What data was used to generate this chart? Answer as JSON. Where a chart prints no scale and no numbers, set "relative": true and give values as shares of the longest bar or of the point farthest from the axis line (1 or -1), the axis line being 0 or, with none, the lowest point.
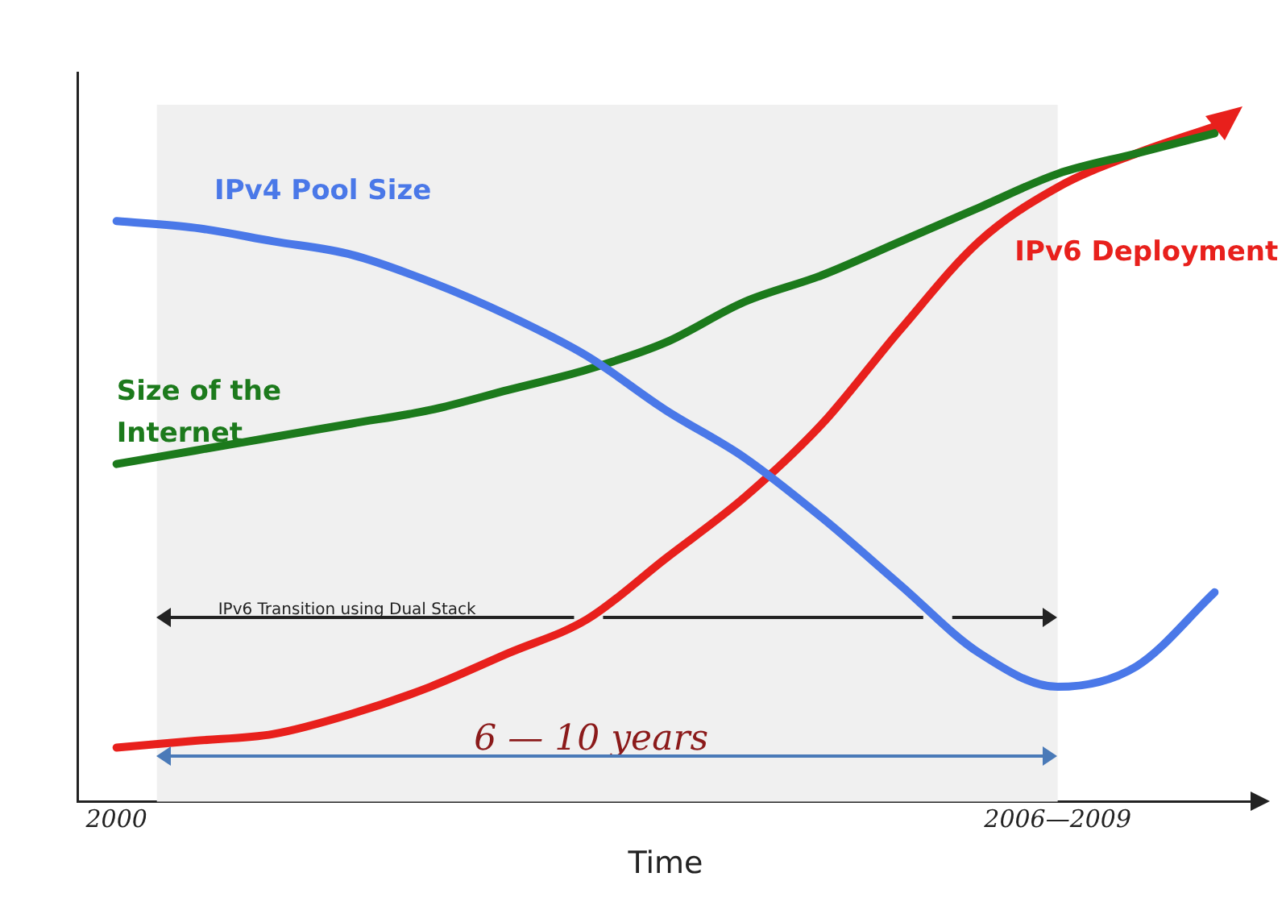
{
  "chart_data": {
    "type": "line",
    "relative": true,
    "xlabel": "Time",
    "categories": [
      "2000",
      null,
      null,
      null,
      null,
      null,
      null,
      null,
      null,
      null,
      null,
      null,
      "2006—2009",
      null,
      null
    ],
    "series": [
      {
        "name": "IPv4 Pool Size",
        "color": "#4a78e8",
        "values": [
          0.86,
          0.85,
          0.83,
          0.81,
          0.77,
          0.72,
          0.66,
          0.58,
          0.51,
          0.42,
          0.32,
          0.22,
          0.17,
          0.2,
          0.31
        ]
      },
      {
        "name": "Size of the Internet",
        "color": "#1c7a1c",
        "values": [
          0.5,
          0.52,
          0.54,
          0.56,
          0.58,
          0.61,
          0.64,
          0.68,
          0.74,
          0.78,
          0.83,
          0.88,
          0.93,
          0.96,
          0.99
        ]
      },
      {
        "name": "IPv6 Deployment",
        "color": "#e8201c",
        "values": [
          0.08,
          0.09,
          0.1,
          0.13,
          0.17,
          0.22,
          0.27,
          0.36,
          0.45,
          0.56,
          0.7,
          0.83,
          0.91,
          0.96,
          1
        ]
      }
    ],
    "bands": [
      {
        "axis": "x",
        "from": "2000",
        "to": "2006—2009",
        "color": "#f0f0f0"
      }
    ],
    "annotations": [
      "IPv6 Transition using Dual Stack",
      "6 — 10 years"
    ],
    "tick_labels": "x",
    "legend": false,
    "grid": false,
    "marker": "none",
    "line_style": "solid"
  }
}
